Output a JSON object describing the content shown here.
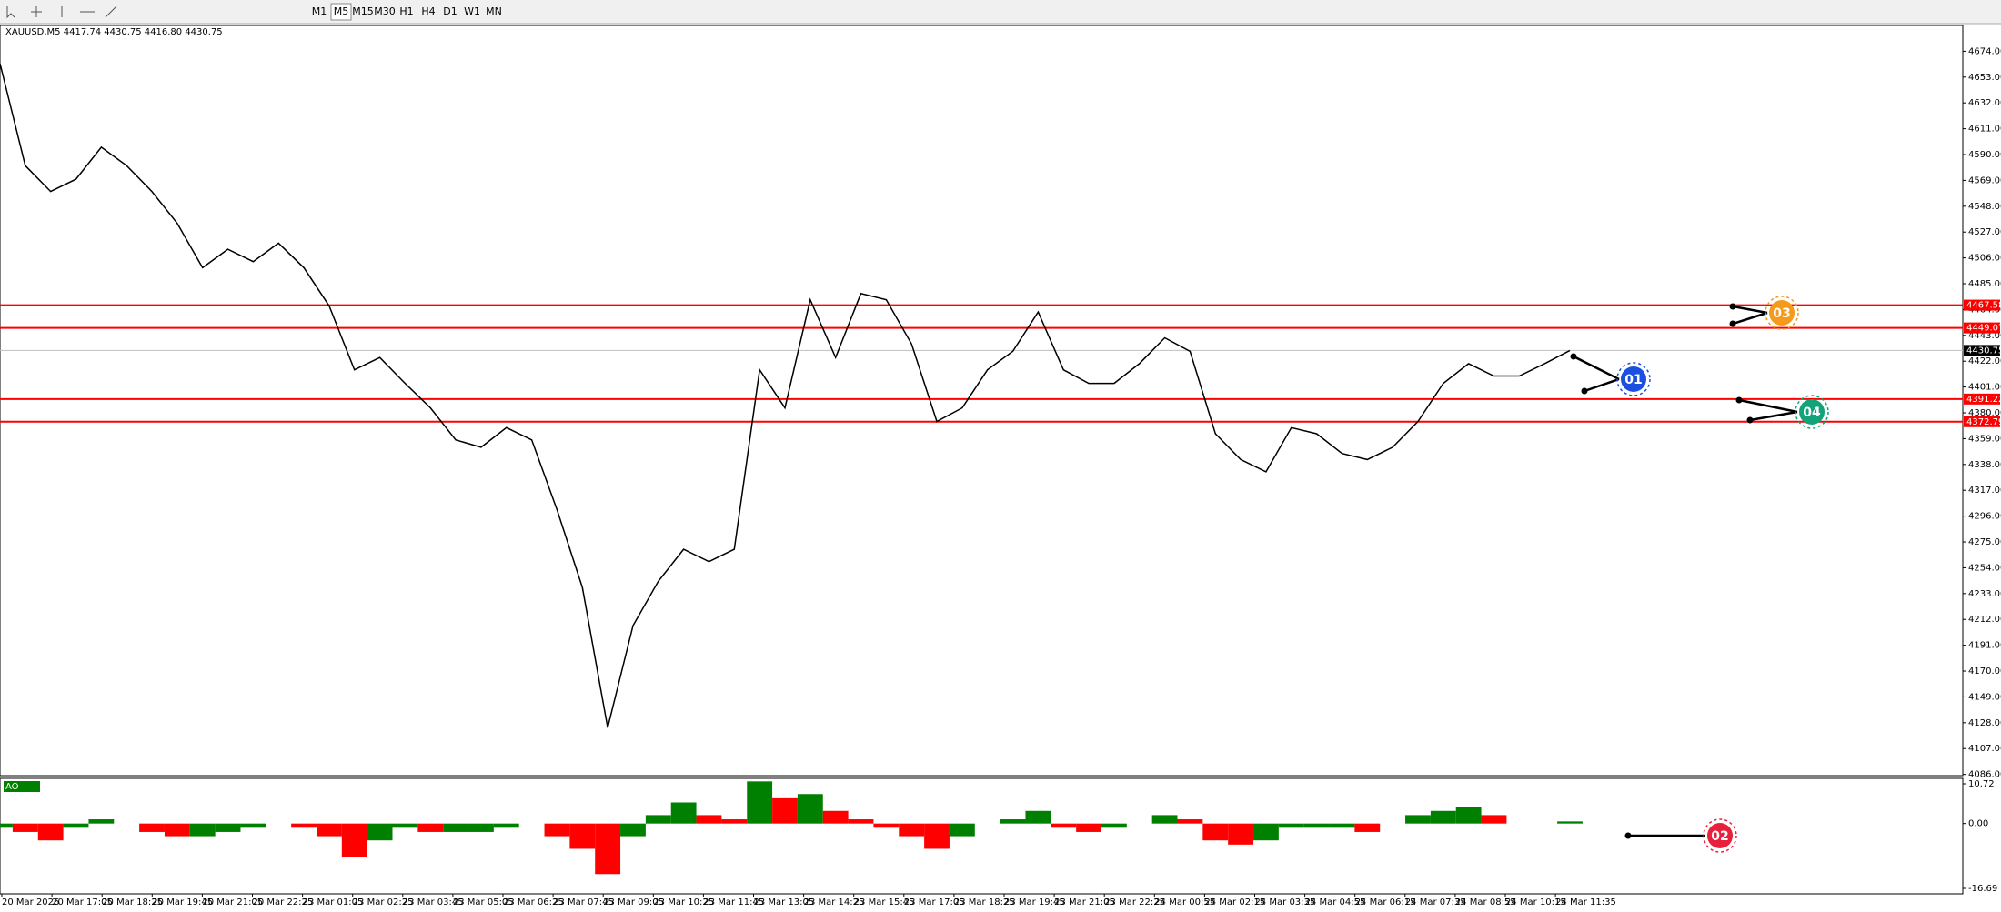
{
  "toolbar": {
    "timeframes": [
      "M1",
      "M5",
      "M15",
      "M30",
      "H1",
      "H4",
      "D1",
      "W1",
      "MN"
    ],
    "active": "M5"
  },
  "chart_data": [
    {
      "type": "line",
      "title": "XAUUSD,M5  4417.74 4430.75 4416.80 4430.75",
      "color": "#000000",
      "values": [
        4664,
        4581,
        4560,
        4570,
        4596,
        4581,
        4560,
        4534,
        4498,
        4513,
        4503,
        4518,
        4498,
        4467,
        4415,
        4425,
        4404,
        4384,
        4358,
        4352,
        4368,
        4358,
        4301,
        4238,
        4124,
        4207,
        4243,
        4269,
        4259,
        4269,
        4415,
        4384,
        4472,
        4425,
        4477,
        4472,
        4436,
        4373,
        4384,
        4415,
        4430,
        4462,
        4415,
        4404,
        4404,
        4420,
        4441,
        4430,
        4363,
        4342,
        4332,
        4368,
        4363,
        4347,
        4342,
        4352,
        4373,
        4404,
        4420,
        4410,
        4410,
        4420,
        4430.75
      ],
      "ylim": [
        4085,
        4695
      ],
      "yticks": [
        {
          "value": 4674,
          "label": "4674.00"
        },
        {
          "value": 4653,
          "label": "4653.00"
        },
        {
          "value": 4632,
          "label": "4632.00"
        },
        {
          "value": 4611,
          "label": "4611.00"
        },
        {
          "value": 4590,
          "label": "4590.00"
        },
        {
          "value": 4569,
          "label": "4569.00"
        },
        {
          "value": 4548,
          "label": "4548.00"
        },
        {
          "value": 4527,
          "label": "4527.00"
        },
        {
          "value": 4506,
          "label": "4506.00"
        },
        {
          "value": 4485,
          "label": "4485.00"
        },
        {
          "value": 4464,
          "label": "4464.00"
        },
        {
          "value": 4443,
          "label": "4443.00"
        },
        {
          "value": 4422,
          "label": "4422.00"
        },
        {
          "value": 4401,
          "label": "4401.00"
        },
        {
          "value": 4380,
          "label": "4380.00"
        },
        {
          "value": 4359,
          "label": "4359.00"
        },
        {
          "value": 4338,
          "label": "4338.00"
        },
        {
          "value": 4317,
          "label": "4317.00"
        },
        {
          "value": 4296,
          "label": "4296.00"
        },
        {
          "value": 4275,
          "label": "4275.00"
        },
        {
          "value": 4254,
          "label": "4254.00"
        },
        {
          "value": 4233,
          "label": "4233.00"
        },
        {
          "value": 4212,
          "label": "4212.00"
        },
        {
          "value": 4191,
          "label": "4191.00"
        },
        {
          "value": 4170,
          "label": "4170.00"
        },
        {
          "value": 4149,
          "label": "4149.00"
        },
        {
          "value": 4128,
          "label": "4128.00"
        },
        {
          "value": 4107,
          "label": "4107.00"
        },
        {
          "value": 4086,
          "label": "4086.00"
        }
      ],
      "levels": [
        4467.58,
        4449.07,
        4391.22,
        4372.79
      ],
      "level_color": "#ff0000",
      "current_price": 4430.75
    },
    {
      "type": "bar",
      "title": "AO",
      "up_color": "#008000",
      "down_color": "#ff0000",
      "values": [
        -1,
        -2,
        -4,
        -1,
        1,
        0,
        -2,
        -3,
        -3,
        -2,
        -1,
        0,
        -1,
        -3,
        -8,
        -4,
        -1,
        -2,
        -2,
        -2,
        -1,
        0,
        -3,
        -6,
        -12,
        -3,
        2,
        5,
        2,
        1,
        10,
        6,
        7,
        3,
        1,
        -1,
        -3,
        -6,
        -3,
        0,
        1,
        3,
        -1,
        -2,
        -1,
        0,
        2,
        1,
        -4,
        -5,
        -4,
        -1,
        -1,
        -1,
        -2,
        0,
        2,
        3,
        4,
        2,
        0,
        0,
        0.5
      ],
      "ylim": [
        -16.69,
        10.72
      ],
      "yticks": [
        {
          "value": 10.72,
          "label": "10.72"
        },
        {
          "value": 0,
          "label": "0.00"
        },
        {
          "value": -16.69,
          "label": "-16.69"
        }
      ]
    }
  ],
  "time_labels": [
    "20 Mar 2026",
    "20 Mar 17:05",
    "20 Mar 18:25",
    "20 Mar 19:45",
    "20 Mar 21:05",
    "20 Mar 22:25",
    "23 Mar 01:05",
    "23 Mar 02:25",
    "23 Mar 03:45",
    "23 Mar 05:05",
    "23 Mar 06:25",
    "23 Mar 07:45",
    "23 Mar 09:05",
    "23 Mar 10:25",
    "23 Mar 11:45",
    "23 Mar 13:05",
    "23 Mar 14:25",
    "23 Mar 15:45",
    "23 Mar 17:05",
    "23 Mar 18:25",
    "23 Mar 19:45",
    "23 Mar 21:05",
    "23 Mar 22:25",
    "24 Mar 00:55",
    "24 Mar 02:15",
    "24 Mar 03:35",
    "24 Mar 04:55",
    "24 Mar 06:15",
    "24 Mar 07:35",
    "24 Mar 08:55",
    "24 Mar 10:15",
    "24 Mar 11:35"
  ],
  "markers": [
    "01",
    "02",
    "03",
    "04"
  ]
}
